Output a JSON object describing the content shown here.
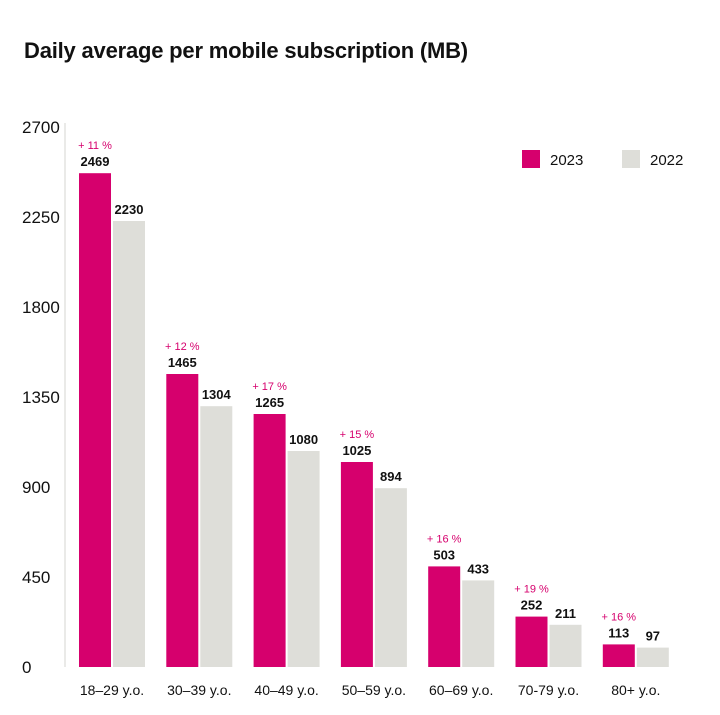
{
  "chart_data": {
    "type": "bar",
    "title": "Daily average per mobile subscription (MB)",
    "xlabel": "",
    "ylabel": "",
    "ylim": [
      0,
      2700
    ],
    "yticks": [
      "0",
      "450",
      "900",
      "1350",
      "1800",
      "2250",
      "2700"
    ],
    "ytick_values": [
      0,
      450,
      900,
      1350,
      1800,
      2250,
      2700
    ],
    "categories": [
      "18–29 y.o.",
      "30–39 y.o.",
      "40–49 y.o.",
      "50–59 y.o.",
      "60–69 y.o.",
      "70-79 y.o.",
      "80+ y.o."
    ],
    "series": [
      {
        "name": "2023",
        "color": "#d6006d",
        "values": [
          2469,
          1465,
          1265,
          1025,
          503,
          252,
          113
        ]
      },
      {
        "name": "2022",
        "color": "#deded9",
        "values": [
          2230,
          1304,
          1080,
          894,
          433,
          211,
          97
        ]
      }
    ],
    "change_labels": [
      "+ 11 %",
      "+ 12 %",
      "+ 17 %",
      "+ 15 %",
      "+ 16 %",
      "+ 19 %",
      "+ 16 %"
    ],
    "change_color": "#d6006d",
    "legend_position": "top-right",
    "grid": false
  }
}
